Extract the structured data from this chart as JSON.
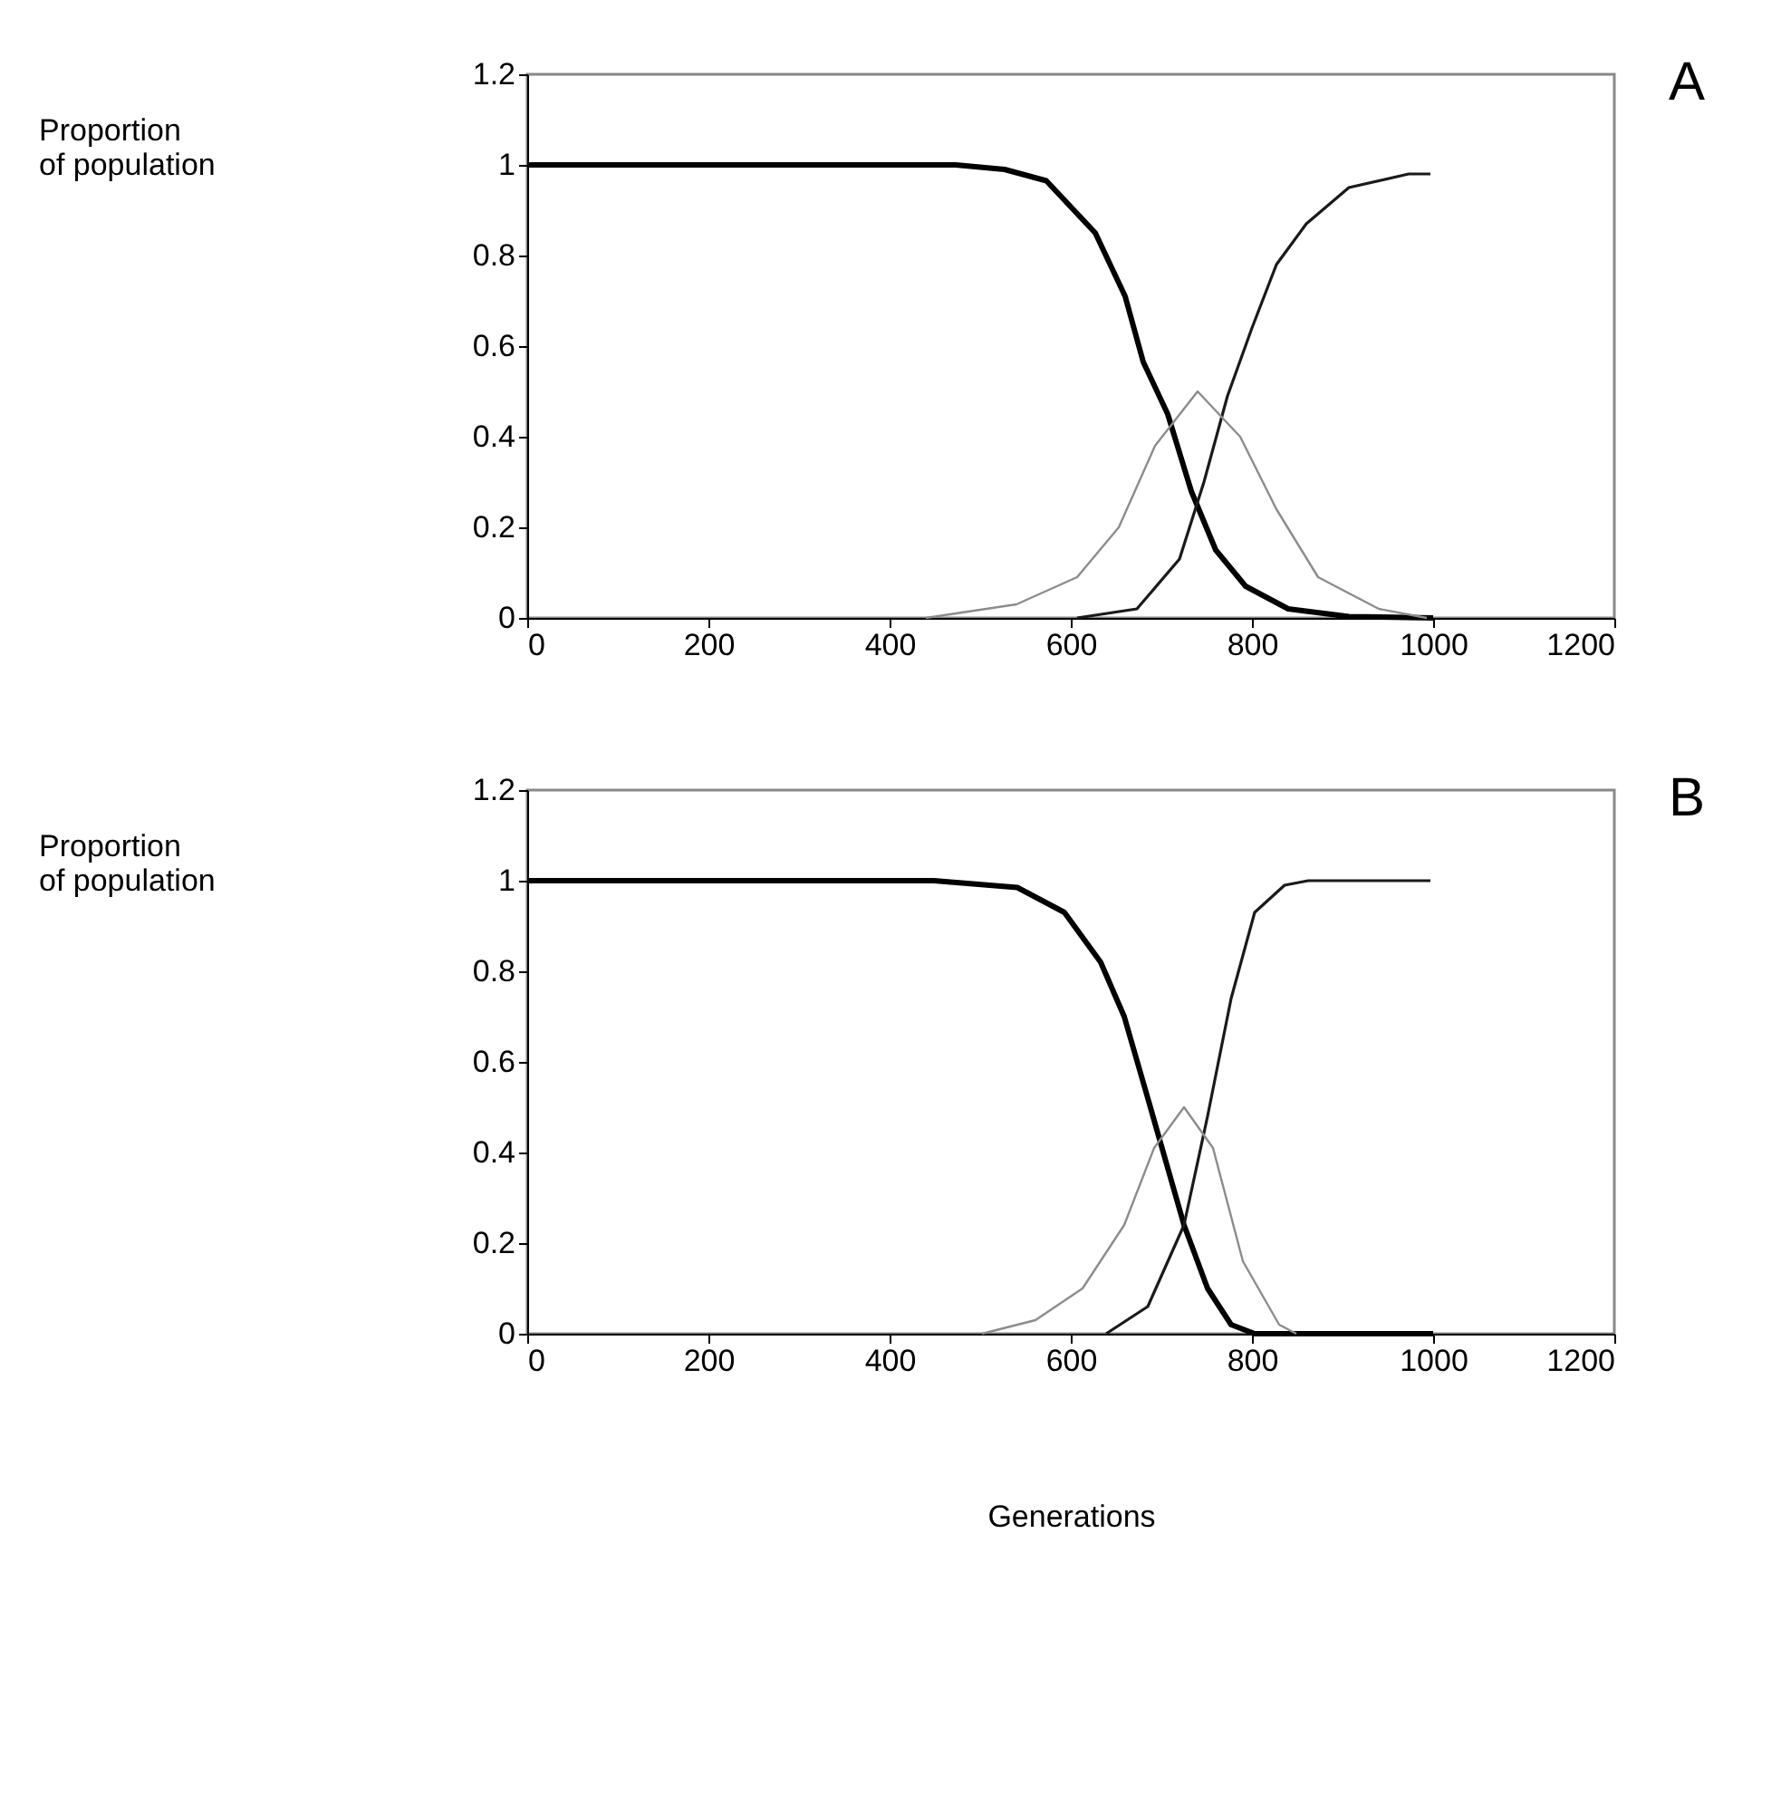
{
  "chart_data": [
    {
      "type": "line",
      "ylabel": "Proportion\nof population",
      "annotations": [
        "A"
      ],
      "xlim": [
        0,
        1200
      ],
      "xticks": [
        0,
        200,
        400,
        600,
        800,
        1000,
        1200
      ],
      "ylim": [
        0,
        1.2
      ],
      "yticks": [
        0,
        0.2,
        0.4,
        0.6,
        0.8,
        1,
        1.2
      ],
      "grid": false,
      "marker": "none",
      "line_style": "solid",
      "series": [
        {
          "color": "#000000",
          "x": [
            0,
            473,
            527,
            573,
            627,
            660,
            680,
            707,
            733,
            760,
            793,
            840,
            907,
            1000
          ],
          "values": [
            1,
            1,
            0.99,
            0.965,
            0.85,
            0.71,
            0.565,
            0.45,
            0.28,
            0.15,
            0.07,
            0.02,
            0.003,
            0
          ]
        },
        {
          "color": "#1a1a1a",
          "x": [
            607,
            673,
            720,
            747,
            773,
            800,
            827,
            860,
            907,
            973,
            997
          ],
          "values": [
            0,
            0.02,
            0.13,
            0.3,
            0.49,
            0.64,
            0.78,
            0.87,
            0.95,
            0.98,
            0.98
          ]
        },
        {
          "color": "#8c8c8c",
          "x": [
            440,
            540,
            607,
            653,
            693,
            740,
            787,
            827,
            873,
            940,
            993
          ],
          "values": [
            0,
            0.03,
            0.09,
            0.2,
            0.38,
            0.5,
            0.4,
            0.24,
            0.09,
            0.02,
            0
          ]
        }
      ]
    },
    {
      "type": "line",
      "ylabel": "Proportion\nof population",
      "xlabel": "Generations",
      "annotations": [
        "B"
      ],
      "xlim": [
        0,
        1200
      ],
      "xticks": [
        0,
        200,
        400,
        600,
        800,
        1000,
        1200
      ],
      "ylim": [
        0,
        1.2
      ],
      "yticks": [
        0,
        0.2,
        0.4,
        0.6,
        0.8,
        1,
        1.2
      ],
      "grid": false,
      "marker": "none",
      "line_style": "solid",
      "series": [
        {
          "color": "#000000",
          "x": [
            0,
            449,
            541,
            593,
            633,
            659,
            685,
            705,
            725,
            751,
            777,
            803,
            1000
          ],
          "values": [
            1,
            1,
            0.985,
            0.93,
            0.82,
            0.7,
            0.52,
            0.38,
            0.24,
            0.1,
            0.02,
            0,
            0
          ]
        },
        {
          "color": "#1a1a1a",
          "x": [
            639,
            685,
            725,
            751,
            777,
            803,
            836,
            862,
            997
          ],
          "values": [
            0,
            0.06,
            0.24,
            0.48,
            0.74,
            0.93,
            0.99,
            1,
            1
          ]
        },
        {
          "color": "#8c8c8c",
          "x": [
            502,
            561,
            613,
            659,
            692,
            725,
            757,
            790,
            830,
            849
          ],
          "values": [
            0,
            0.03,
            0.1,
            0.24,
            0.41,
            0.5,
            0.41,
            0.16,
            0.02,
            0
          ]
        }
      ]
    }
  ]
}
